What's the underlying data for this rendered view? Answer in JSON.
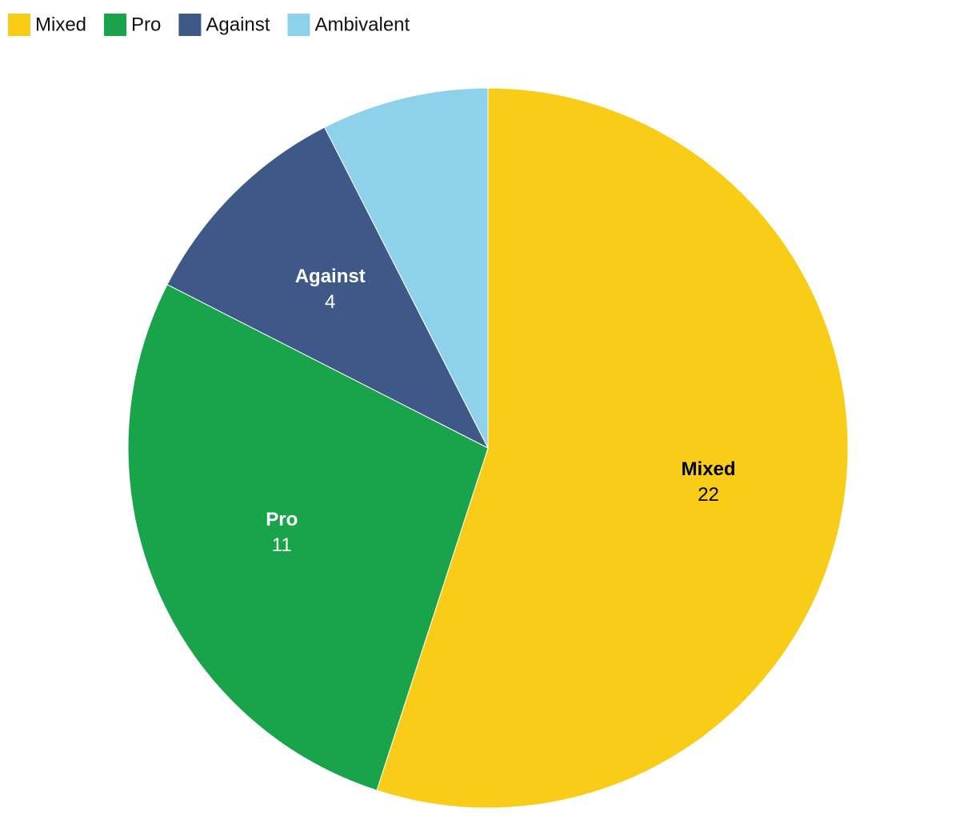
{
  "chart_data": {
    "type": "pie",
    "categories": [
      "Mixed",
      "Pro",
      "Against",
      "Ambivalent"
    ],
    "values": [
      22,
      11,
      4,
      3
    ],
    "colors": [
      "#f9cd17",
      "#19a34a",
      "#3e5888",
      "#8ed1ea"
    ],
    "legend": "top-left"
  }
}
